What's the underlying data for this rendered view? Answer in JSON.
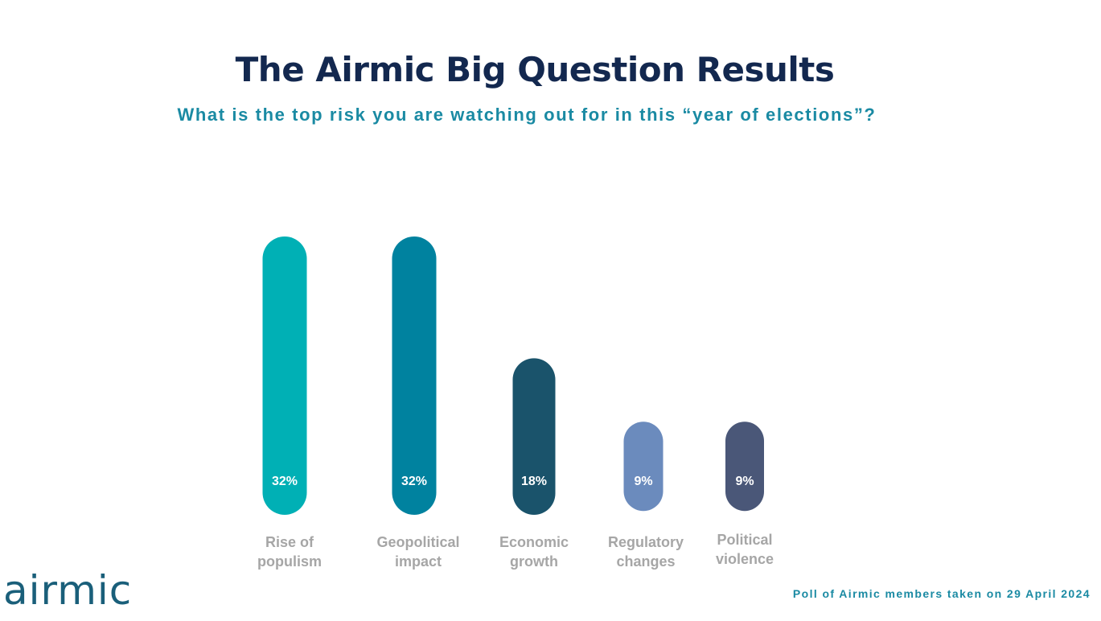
{
  "header": {
    "title": "The Airmic Big Question Results",
    "subtitle": "What is the top risk you are watching out for in this “year of elections”?"
  },
  "brand": {
    "logo_text": "airmic"
  },
  "footer": {
    "note": "Poll of Airmic members taken on 29 April 2024"
  },
  "chart_data": {
    "type": "bar",
    "title": "The Airmic Big Question Results",
    "subtitle": "What is the top risk you are watching out for in this “year of elections”?",
    "categories": [
      [
        "Rise of",
        "populism"
      ],
      [
        "Geopolitical",
        "impact"
      ],
      [
        "Economic",
        "growth"
      ],
      [
        "Regulatory",
        "changes"
      ],
      [
        "Political",
        "violence"
      ]
    ],
    "values": [
      32,
      32,
      18,
      9,
      9
    ],
    "value_labels": [
      "32%",
      "32%",
      "18%",
      "9%",
      "9%"
    ],
    "unit": "%",
    "colors": [
      "#00b0b5",
      "#00829f",
      "#1a536b",
      "#6b8bbd",
      "#4a5778"
    ],
    "xlabel": "",
    "ylabel": "",
    "grid": false,
    "legend": false
  }
}
